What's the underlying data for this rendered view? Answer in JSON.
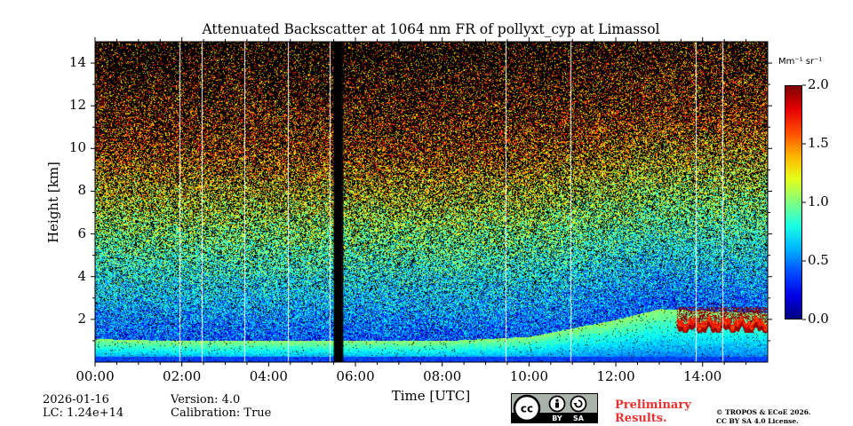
{
  "chart_data": {
    "type": "heatmap",
    "title": "Attenuated Backscatter at 1064 nm FR of pollyxt_cyp at Limassol",
    "xlabel": "Time [UTC]",
    "ylabel": "Height [km]",
    "xlim": [
      0,
      15.5
    ],
    "ylim": [
      0,
      15
    ],
    "x_ticks": [
      {
        "value": 0,
        "label": "00:00"
      },
      {
        "value": 2,
        "label": "02:00"
      },
      {
        "value": 4,
        "label": "04:00"
      },
      {
        "value": 6,
        "label": "06:00"
      },
      {
        "value": 8,
        "label": "08:00"
      },
      {
        "value": 10,
        "label": "10:00"
      },
      {
        "value": 12,
        "label": "12:00"
      },
      {
        "value": 14,
        "label": "14:00"
      }
    ],
    "y_ticks": [
      {
        "value": 2,
        "label": "2"
      },
      {
        "value": 4,
        "label": "4"
      },
      {
        "value": 6,
        "label": "6"
      },
      {
        "value": 8,
        "label": "8"
      },
      {
        "value": 10,
        "label": "10"
      },
      {
        "value": 12,
        "label": "12"
      },
      {
        "value": 14,
        "label": "14"
      }
    ],
    "colorbar": {
      "unit": "Mm⁻¹ sr⁻¹",
      "range": [
        0.0,
        2.0
      ],
      "ticks": [
        {
          "value": 0.0,
          "label": "0.0"
        },
        {
          "value": 0.5,
          "label": "0.5"
        },
        {
          "value": 1.0,
          "label": "1.0"
        },
        {
          "value": 1.5,
          "label": "1.5"
        },
        {
          "value": 2.0,
          "label": "2.0"
        }
      ],
      "colormap": "jet-like"
    },
    "data_gaps_hours": [
      [
        5.5,
        5.72
      ]
    ],
    "calibration_lines_hours": [
      1.95,
      2.45,
      3.45,
      4.45,
      5.4,
      9.45,
      10.95,
      13.85,
      14.45
    ],
    "features": {
      "boundary_layer_top_km": [
        {
          "time": 0,
          "height": 1.1
        },
        {
          "time": 2,
          "height": 1.0
        },
        {
          "time": 5.4,
          "height": 1.0
        },
        {
          "time": 8,
          "height": 1.0
        },
        {
          "time": 10,
          "height": 1.2
        },
        {
          "time": 12,
          "height": 2.0
        },
        {
          "time": 13,
          "height": 2.5
        },
        {
          "time": 15.5,
          "height": 2.3
        }
      ],
      "low_cloud": {
        "start_hour": 13.4,
        "end_hour": 15.5,
        "base_km": 1.4,
        "top_km": 2.6,
        "value": 2.0
      }
    }
  },
  "metadata": {
    "date": "2026-01-16",
    "lc": "LC: 1.24e+14",
    "version": "Version: 4.0",
    "calibration": "Calibration: True"
  },
  "license": {
    "badge_by": "BY",
    "badge_sa": "SA",
    "preliminary_line1": "Preliminary",
    "preliminary_line2": "Results.",
    "copyright_line1": "© TROPOS & ECoE 2026.",
    "copyright_line2": "CC BY SA 4.0 License."
  }
}
